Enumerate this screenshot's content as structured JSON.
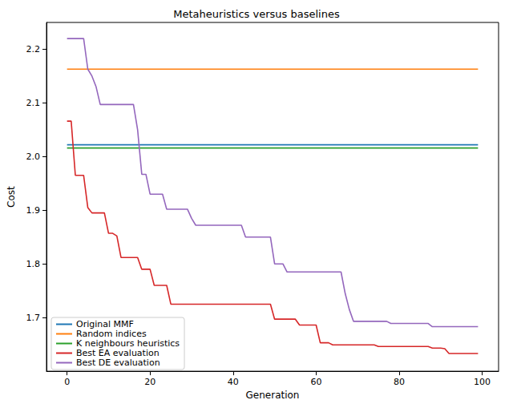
{
  "chart_data": {
    "type": "line",
    "title": "Metaheuristics versus baselines",
    "x_label": "Generation",
    "y_label": "Cost",
    "x": [
      0,
      1,
      2,
      3,
      4,
      5,
      6,
      7,
      8,
      9,
      10,
      11,
      12,
      13,
      14,
      15,
      16,
      17,
      18,
      19,
      20,
      21,
      22,
      23,
      24,
      25,
      26,
      27,
      28,
      29,
      30,
      31,
      32,
      33,
      34,
      35,
      36,
      37,
      38,
      39,
      40,
      41,
      42,
      43,
      44,
      45,
      46,
      47,
      48,
      49,
      50,
      51,
      52,
      53,
      54,
      55,
      56,
      57,
      58,
      59,
      60,
      61,
      62,
      63,
      64,
      65,
      66,
      67,
      68,
      69,
      70,
      71,
      72,
      73,
      74,
      75,
      76,
      77,
      78,
      79,
      80,
      81,
      82,
      83,
      84,
      85,
      86,
      87,
      88,
      89,
      90,
      91,
      92,
      93,
      94,
      95,
      96,
      97,
      98,
      99
    ],
    "series": [
      {
        "name": "Original MMF",
        "color": "#1f77b4",
        "values": [
          2.022,
          2.022,
          2.022,
          2.022,
          2.022,
          2.022,
          2.022,
          2.022,
          2.022,
          2.022,
          2.022,
          2.022,
          2.022,
          2.022,
          2.022,
          2.022,
          2.022,
          2.022,
          2.022,
          2.022,
          2.022,
          2.022,
          2.022,
          2.022,
          2.022,
          2.022,
          2.022,
          2.022,
          2.022,
          2.022,
          2.022,
          2.022,
          2.022,
          2.022,
          2.022,
          2.022,
          2.022,
          2.022,
          2.022,
          2.022,
          2.022,
          2.022,
          2.022,
          2.022,
          2.022,
          2.022,
          2.022,
          2.022,
          2.022,
          2.022,
          2.022,
          2.022,
          2.022,
          2.022,
          2.022,
          2.022,
          2.022,
          2.022,
          2.022,
          2.022,
          2.022,
          2.022,
          2.022,
          2.022,
          2.022,
          2.022,
          2.022,
          2.022,
          2.022,
          2.022,
          2.022,
          2.022,
          2.022,
          2.022,
          2.022,
          2.022,
          2.022,
          2.022,
          2.022,
          2.022,
          2.022,
          2.022,
          2.022,
          2.022,
          2.022,
          2.022,
          2.022,
          2.022,
          2.022,
          2.022,
          2.022,
          2.022,
          2.022,
          2.022,
          2.022,
          2.022,
          2.022,
          2.022,
          2.022,
          2.022
        ]
      },
      {
        "name": "Random indices",
        "color": "#ff7f0e",
        "values": [
          2.163,
          2.163,
          2.163,
          2.163,
          2.163,
          2.163,
          2.163,
          2.163,
          2.163,
          2.163,
          2.163,
          2.163,
          2.163,
          2.163,
          2.163,
          2.163,
          2.163,
          2.163,
          2.163,
          2.163,
          2.163,
          2.163,
          2.163,
          2.163,
          2.163,
          2.163,
          2.163,
          2.163,
          2.163,
          2.163,
          2.163,
          2.163,
          2.163,
          2.163,
          2.163,
          2.163,
          2.163,
          2.163,
          2.163,
          2.163,
          2.163,
          2.163,
          2.163,
          2.163,
          2.163,
          2.163,
          2.163,
          2.163,
          2.163,
          2.163,
          2.163,
          2.163,
          2.163,
          2.163,
          2.163,
          2.163,
          2.163,
          2.163,
          2.163,
          2.163,
          2.163,
          2.163,
          2.163,
          2.163,
          2.163,
          2.163,
          2.163,
          2.163,
          2.163,
          2.163,
          2.163,
          2.163,
          2.163,
          2.163,
          2.163,
          2.163,
          2.163,
          2.163,
          2.163,
          2.163,
          2.163,
          2.163,
          2.163,
          2.163,
          2.163,
          2.163,
          2.163,
          2.163,
          2.163,
          2.163,
          2.163,
          2.163,
          2.163,
          2.163,
          2.163,
          2.163,
          2.163,
          2.163,
          2.163,
          2.163
        ]
      },
      {
        "name": "K neighbours heuristics",
        "color": "#2ca02c",
        "values": [
          2.016,
          2.016,
          2.016,
          2.016,
          2.016,
          2.016,
          2.016,
          2.016,
          2.016,
          2.016,
          2.016,
          2.016,
          2.016,
          2.016,
          2.016,
          2.016,
          2.016,
          2.016,
          2.016,
          2.016,
          2.016,
          2.016,
          2.016,
          2.016,
          2.016,
          2.016,
          2.016,
          2.016,
          2.016,
          2.016,
          2.016,
          2.016,
          2.016,
          2.016,
          2.016,
          2.016,
          2.016,
          2.016,
          2.016,
          2.016,
          2.016,
          2.016,
          2.016,
          2.016,
          2.016,
          2.016,
          2.016,
          2.016,
          2.016,
          2.016,
          2.016,
          2.016,
          2.016,
          2.016,
          2.016,
          2.016,
          2.016,
          2.016,
          2.016,
          2.016,
          2.016,
          2.016,
          2.016,
          2.016,
          2.016,
          2.016,
          2.016,
          2.016,
          2.016,
          2.016,
          2.016,
          2.016,
          2.016,
          2.016,
          2.016,
          2.016,
          2.016,
          2.016,
          2.016,
          2.016,
          2.016,
          2.016,
          2.016,
          2.016,
          2.016,
          2.016,
          2.016,
          2.016,
          2.016,
          2.016,
          2.016,
          2.016,
          2.016,
          2.016,
          2.016,
          2.016,
          2.016,
          2.016,
          2.016,
          2.016
        ]
      },
      {
        "name": "Best EA evaluation",
        "color": "#d62728",
        "values": [
          2.066,
          2.066,
          1.965,
          1.965,
          1.965,
          1.905,
          1.895,
          1.895,
          1.895,
          1.895,
          1.857,
          1.857,
          1.852,
          1.812,
          1.812,
          1.812,
          1.812,
          1.812,
          1.79,
          1.79,
          1.79,
          1.76,
          1.76,
          1.76,
          1.76,
          1.725,
          1.725,
          1.725,
          1.725,
          1.725,
          1.725,
          1.725,
          1.725,
          1.725,
          1.725,
          1.725,
          1.725,
          1.725,
          1.725,
          1.725,
          1.725,
          1.725,
          1.725,
          1.725,
          1.725,
          1.725,
          1.725,
          1.725,
          1.725,
          1.725,
          1.697,
          1.697,
          1.697,
          1.697,
          1.697,
          1.697,
          1.686,
          1.686,
          1.686,
          1.686,
          1.686,
          1.653,
          1.653,
          1.653,
          1.649,
          1.649,
          1.649,
          1.649,
          1.649,
          1.649,
          1.649,
          1.649,
          1.649,
          1.649,
          1.649,
          1.646,
          1.646,
          1.646,
          1.646,
          1.646,
          1.646,
          1.646,
          1.646,
          1.646,
          1.646,
          1.646,
          1.646,
          1.646,
          1.643,
          1.643,
          1.643,
          1.642,
          1.633,
          1.633,
          1.633,
          1.633,
          1.633,
          1.633,
          1.633,
          1.633
        ]
      },
      {
        "name": "Best DE evaluation",
        "color": "#9467bd",
        "values": [
          2.22,
          2.22,
          2.22,
          2.22,
          2.22,
          2.163,
          2.15,
          2.13,
          2.097,
          2.097,
          2.097,
          2.097,
          2.097,
          2.097,
          2.097,
          2.097,
          2.097,
          2.05,
          1.967,
          1.967,
          1.93,
          1.93,
          1.93,
          1.93,
          1.902,
          1.902,
          1.902,
          1.902,
          1.902,
          1.902,
          1.885,
          1.872,
          1.872,
          1.872,
          1.872,
          1.872,
          1.872,
          1.872,
          1.872,
          1.872,
          1.872,
          1.872,
          1.872,
          1.85,
          1.85,
          1.85,
          1.85,
          1.85,
          1.85,
          1.85,
          1.8,
          1.8,
          1.8,
          1.785,
          1.785,
          1.785,
          1.785,
          1.785,
          1.785,
          1.785,
          1.785,
          1.785,
          1.785,
          1.785,
          1.785,
          1.785,
          1.785,
          1.745,
          1.715,
          1.693,
          1.693,
          1.693,
          1.693,
          1.693,
          1.693,
          1.693,
          1.693,
          1.693,
          1.689,
          1.689,
          1.689,
          1.689,
          1.689,
          1.689,
          1.689,
          1.689,
          1.689,
          1.689,
          1.683,
          1.683,
          1.683,
          1.683,
          1.683,
          1.683,
          1.683,
          1.683,
          1.683,
          1.683,
          1.683,
          1.683
        ]
      }
    ],
    "xlim": [
      -4.95,
      103.95
    ],
    "xticks": [
      0,
      20,
      40,
      60,
      80,
      100
    ],
    "ylim": [
      1.6,
      2.25
    ],
    "yticks": [
      1.7,
      1.8,
      1.9,
      {
        "value": 2,
        "label": "2.0"
      },
      2.1,
      2.2
    ],
    "grid": false,
    "legend": "lower left"
  }
}
